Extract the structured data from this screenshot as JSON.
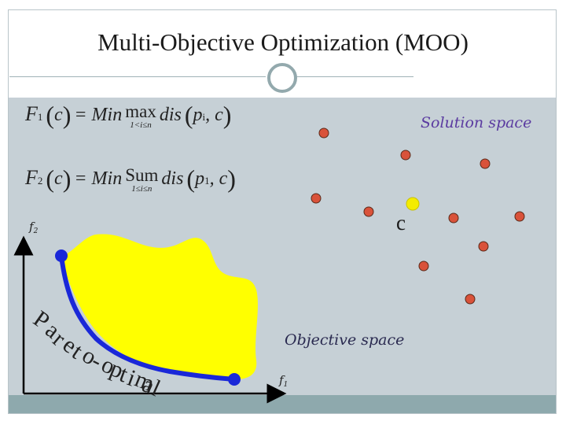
{
  "title": "Multi-Objective Optimization (MOO)",
  "formula_1": {
    "fn": "F",
    "fn_sub": "1",
    "c": "c",
    "equals": "= Min",
    "operator": "max",
    "operator_range": "1<i≤n",
    "dis": "dis",
    "p": "p",
    "p_sub": "i",
    "args_tail": ", c"
  },
  "formula_2": {
    "fn": "F",
    "fn_sub": "2",
    "c": "c",
    "equals": "= Min",
    "operator": "Sum",
    "operator_range": "1≤i≤n",
    "dis": "dis",
    "p": "p",
    "p_sub": "1",
    "args_tail": ", c"
  },
  "solution_space_label": "Solution space",
  "objective_space_label": "Objective space",
  "selected_point_label": "c",
  "axis_y_label": "f",
  "axis_y_sub": "2",
  "axis_x_label": "f",
  "axis_x_sub": "1",
  "pareto_label": "Pareto-optimal",
  "colors": {
    "content_bg": "#c6d0d6",
    "footer_bar": "#8ea9ad",
    "solution_point": "#d9523a",
    "selected_point": "#f4ec00",
    "pareto_front": "#1a28d8",
    "objective_region": "#ffff00",
    "solution_label": "#5a3aa0"
  }
}
